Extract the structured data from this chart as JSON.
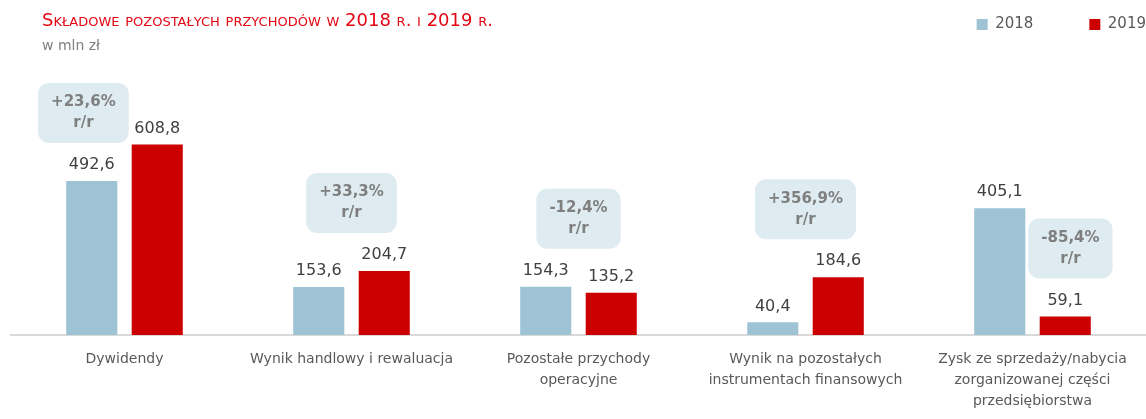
{
  "chart_data": {
    "type": "bar",
    "title": "Składowe pozostałych przychodów w 2018 r. i 2019 r.",
    "subtitle": "w mln zł",
    "categories": [
      "Dywidendy",
      "Wynik handlowy i rewaluacja",
      "Pozostałe przychody operacyjne",
      "Wynik na pozostałych instrumentach finansowych",
      "Zysk ze sprzedaży/nabycia zorganizowanej części przedsiębiorstwa"
    ],
    "series": [
      {
        "name": "2018",
        "color": "#9dc3d4",
        "values": [
          492.6,
          153.6,
          154.3,
          40.4,
          405.1
        ],
        "value_labels": [
          "492,6",
          "153,6",
          "154,3",
          "40,4",
          "405,1"
        ]
      },
      {
        "name": "2019",
        "color": "#cc0000",
        "values": [
          608.8,
          204.7,
          135.2,
          184.6,
          59.1
        ],
        "value_labels": [
          "608,8",
          "204,7",
          "135,2",
          "184,6",
          "59,1"
        ]
      }
    ],
    "legend": "top right",
    "annotations": [
      "+23,6% r/r",
      "+33,3% r/r",
      "-12,4% r/r",
      "+356,9% r/r",
      "-85,4% r/r"
    ]
  }
}
